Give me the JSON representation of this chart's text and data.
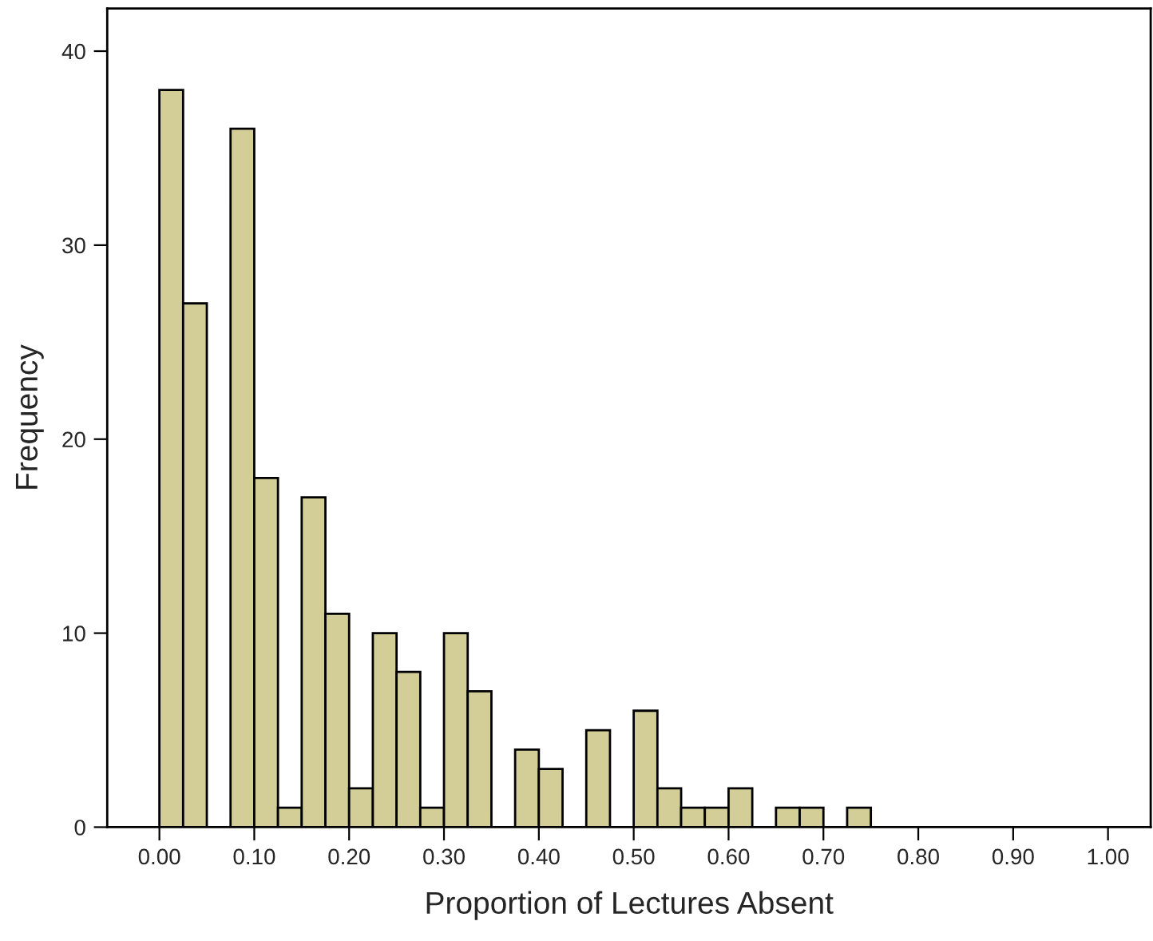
{
  "chart_data": {
    "type": "histogram",
    "xlabel": "Proportion of Lectures Absent",
    "ylabel": "Frequency",
    "bins": [
      0,
      0.025,
      0.05,
      0.075,
      0.1,
      0.125,
      0.15,
      0.175,
      0.2,
      0.225,
      0.25,
      0.275,
      0.3,
      0.325,
      0.35,
      0.375,
      0.4,
      0.425,
      0.45,
      0.475,
      0.5,
      0.525,
      0.55,
      0.575,
      0.6,
      0.625,
      0.65,
      0.675,
      0.7,
      0.725,
      0.75
    ],
    "values": [
      38,
      27,
      0,
      36,
      18,
      1,
      17,
      11,
      2,
      10,
      8,
      1,
      10,
      7,
      0,
      4,
      3,
      0,
      5,
      0,
      6,
      2,
      1,
      1,
      2,
      0,
      1,
      1,
      0,
      1
    ],
    "color": "#d3ce97",
    "xlim": [
      -0.055,
      1.045
    ],
    "ylim": [
      0,
      42.2
    ],
    "xticks": [
      {
        "value": 0,
        "label": "0.00"
      },
      {
        "value": 0.1,
        "label": "0.10"
      },
      {
        "value": 0.2,
        "label": "0.20"
      },
      {
        "value": 0.3,
        "label": "0.30"
      },
      {
        "value": 0.4,
        "label": "0.40"
      },
      {
        "value": 0.5,
        "label": "0.50"
      },
      {
        "value": 0.6,
        "label": "0.60"
      },
      {
        "value": 0.7,
        "label": "0.70"
      },
      {
        "value": 0.8,
        "label": "0.80"
      },
      {
        "value": 0.9,
        "label": "0.90"
      },
      {
        "value": 1.0,
        "label": "1.00"
      }
    ],
    "yticks": [
      0,
      10,
      20,
      30,
      40
    ],
    "grid": false
  }
}
